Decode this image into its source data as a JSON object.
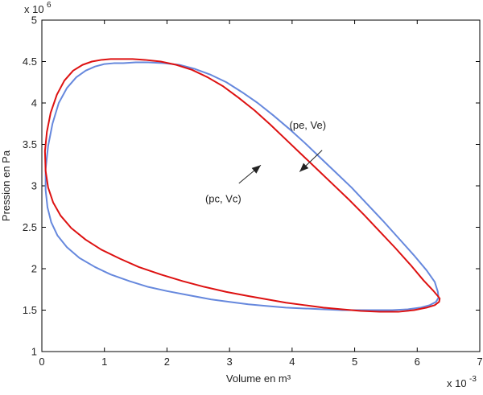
{
  "chart_data": {
    "type": "line",
    "xlabel": "Volume en m³",
    "ylabel": "Pression en Pa",
    "x_multiplier_label": "x 10",
    "x_multiplier_exp": "-3",
    "y_multiplier_label": "x 10",
    "y_multiplier_exp": "6",
    "xlim": [
      0,
      7
    ],
    "ylim": [
      1,
      5
    ],
    "x_ticks": [
      "0",
      "1",
      "2",
      "3",
      "4",
      "5",
      "6",
      "7"
    ],
    "y_ticks": [
      "1",
      "1.5",
      "2",
      "2.5",
      "3",
      "3.5",
      "4",
      "4.5",
      "5"
    ],
    "grid": false,
    "series": [
      {
        "color": "#6688dd",
        "x": [
          6.33,
          6.28,
          6.15,
          5.95,
          5.7,
          5.45,
          5.2,
          4.95,
          4.7,
          4.45,
          4.2,
          3.95,
          3.7,
          3.45,
          3.2,
          2.95,
          2.7,
          2.45,
          2.2,
          1.95,
          1.7,
          1.5,
          1.3,
          1.15,
          1.0,
          0.85,
          0.7,
          0.55,
          0.4,
          0.27,
          0.17,
          0.1,
          0.06,
          0.06,
          0.09,
          0.15,
          0.25,
          0.4,
          0.6,
          0.85,
          1.1,
          1.4,
          1.7,
          2.0,
          2.35,
          2.7,
          3.0,
          3.3,
          3.6,
          3.9,
          4.2,
          4.5,
          4.8,
          5.1,
          5.35,
          5.6,
          5.85,
          6.05,
          6.2,
          6.3,
          6.34,
          6.33
        ],
        "y": [
          1.72,
          1.84,
          1.98,
          2.16,
          2.37,
          2.58,
          2.78,
          2.98,
          3.16,
          3.34,
          3.52,
          3.69,
          3.85,
          4.0,
          4.13,
          4.25,
          4.34,
          4.41,
          4.46,
          4.48,
          4.49,
          4.49,
          4.48,
          4.48,
          4.47,
          4.44,
          4.39,
          4.31,
          4.18,
          4.0,
          3.75,
          3.48,
          3.2,
          2.95,
          2.74,
          2.56,
          2.4,
          2.26,
          2.13,
          2.02,
          1.93,
          1.85,
          1.78,
          1.73,
          1.68,
          1.63,
          1.6,
          1.57,
          1.55,
          1.53,
          1.52,
          1.51,
          1.5,
          1.5,
          1.5,
          1.5,
          1.51,
          1.53,
          1.56,
          1.6,
          1.65,
          1.72
        ]
      },
      {
        "color": "#dd1111",
        "x": [
          6.33,
          6.25,
          6.1,
          5.9,
          5.65,
          5.4,
          5.15,
          4.9,
          4.65,
          4.4,
          4.15,
          3.9,
          3.65,
          3.4,
          3.15,
          2.9,
          2.65,
          2.4,
          2.15,
          1.9,
          1.65,
          1.45,
          1.25,
          1.1,
          0.95,
          0.8,
          0.65,
          0.5,
          0.36,
          0.24,
          0.14,
          0.08,
          0.05,
          0.06,
          0.1,
          0.18,
          0.3,
          0.47,
          0.7,
          0.95,
          1.25,
          1.55,
          1.9,
          2.25,
          2.6,
          2.95,
          3.3,
          3.6,
          3.9,
          4.2,
          4.5,
          4.8,
          5.1,
          5.4,
          5.7,
          5.95,
          6.15,
          6.28,
          6.35,
          6.36,
          6.33
        ],
        "y": [
          1.67,
          1.74,
          1.86,
          2.04,
          2.25,
          2.45,
          2.65,
          2.84,
          3.02,
          3.2,
          3.38,
          3.56,
          3.74,
          3.91,
          4.06,
          4.2,
          4.31,
          4.4,
          4.46,
          4.5,
          4.52,
          4.53,
          4.53,
          4.53,
          4.52,
          4.5,
          4.46,
          4.39,
          4.27,
          4.1,
          3.88,
          3.65,
          3.42,
          3.18,
          2.98,
          2.8,
          2.64,
          2.49,
          2.35,
          2.23,
          2.12,
          2.02,
          1.93,
          1.85,
          1.78,
          1.72,
          1.67,
          1.63,
          1.59,
          1.56,
          1.53,
          1.51,
          1.49,
          1.48,
          1.48,
          1.5,
          1.53,
          1.56,
          1.6,
          1.64,
          1.67
        ]
      }
    ],
    "annotations": [
      {
        "text": "(pe, Ve)",
        "x": 4.25,
        "y": 3.69,
        "arrow_from": [
          4.48,
          3.43
        ],
        "arrow_to": [
          4.12,
          3.17
        ]
      },
      {
        "text": "(pc, Vc)",
        "x": 2.9,
        "y": 2.8,
        "arrow_from": [
          3.15,
          3.03
        ],
        "arrow_to": [
          3.5,
          3.25
        ]
      }
    ]
  }
}
